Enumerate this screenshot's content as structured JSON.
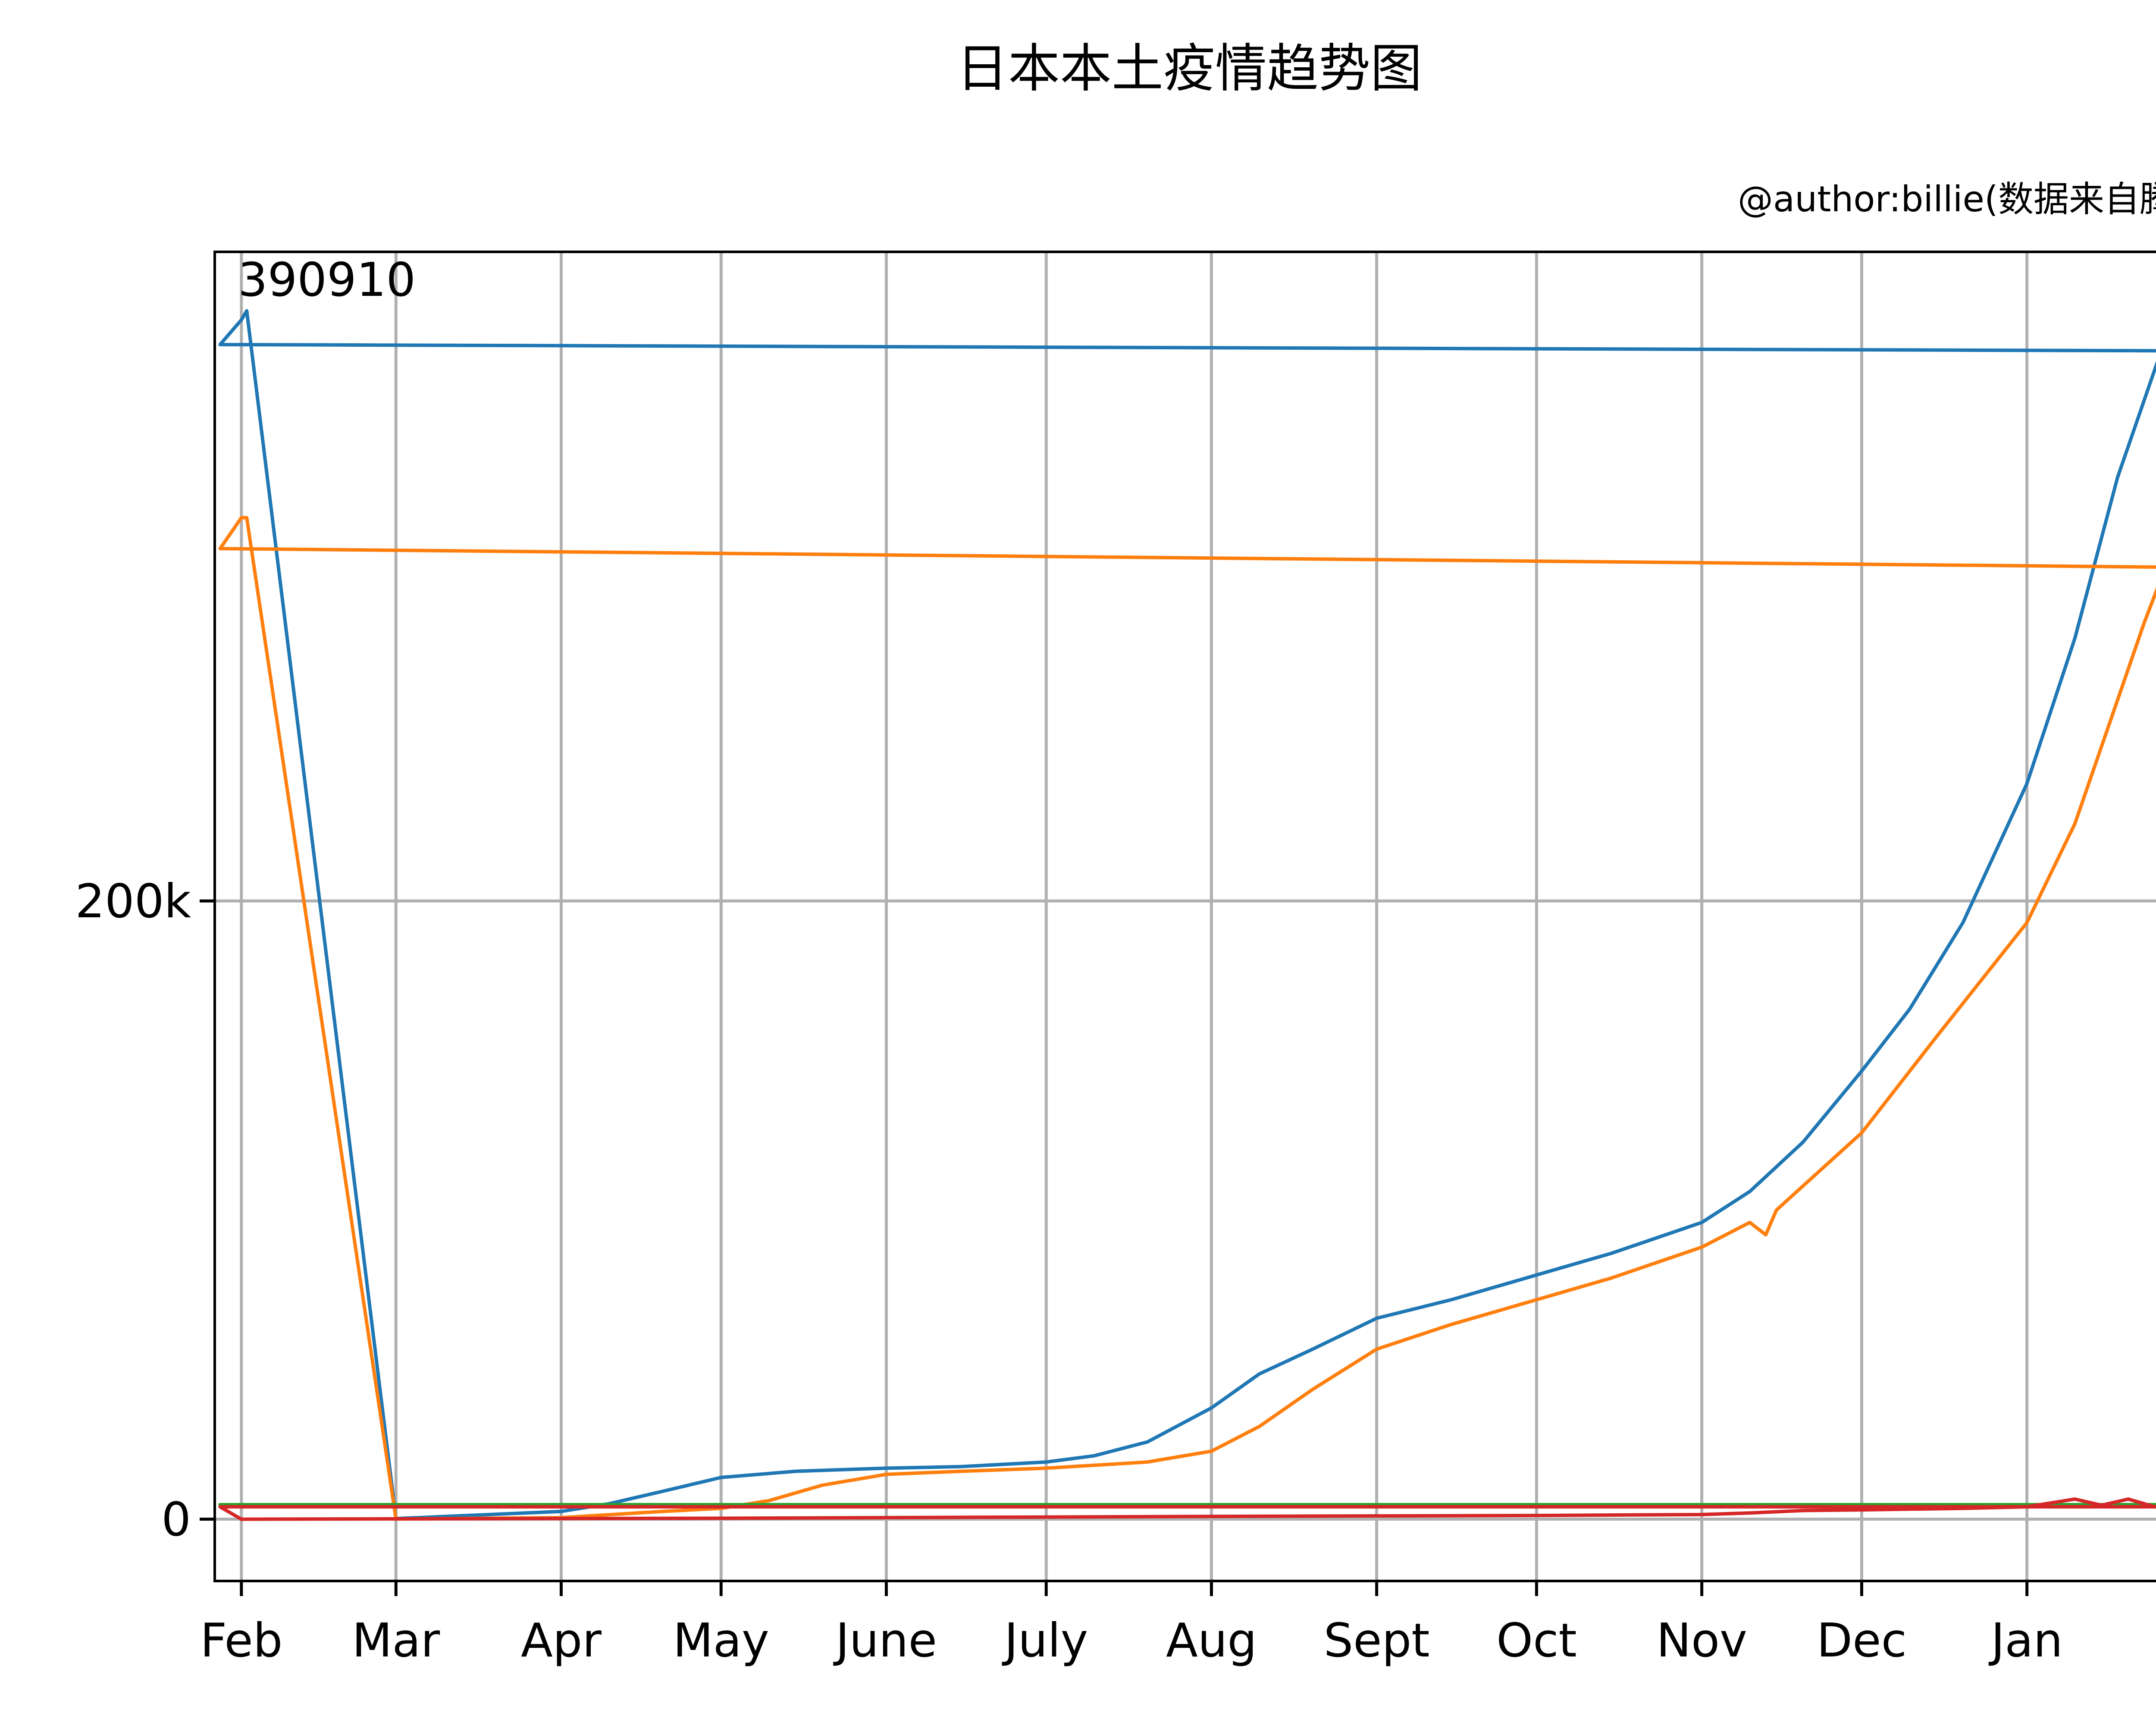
{
  "title": "日本本土疫情趋势图",
  "subtitle": "@author:billie(数据来自腾讯)",
  "chart_data": {
    "type": "line",
    "title": "日本本土疫情趋势图",
    "subtitle": "@author:billie(数据来自腾讯)",
    "xlabel": "",
    "ylabel": "",
    "x_ticks": [
      "Feb",
      "Mar",
      "Apr",
      "May",
      "June",
      "July",
      "Aug",
      "Sept",
      "Oct",
      "Nov",
      "Dec",
      "Jan"
    ],
    "x_tick_dates": [
      "2020-02-01",
      "2020-03-01",
      "2020-04-01",
      "2020-05-01",
      "2020-06-01",
      "2020-07-01",
      "2020-08-01",
      "2020-09-01",
      "2020-10-01",
      "2020-11-01",
      "2020-12-01",
      "2021-01-01"
    ],
    "xlim": [
      "2020-01-27",
      "2021-02-07"
    ],
    "y_ticks": [
      0,
      200000
    ],
    "y_tick_labels": [
      "0",
      "200k"
    ],
    "ylim": [
      -20000,
      410000
    ],
    "grid": true,
    "legend": "none",
    "annotations": [
      {
        "text": "390910"
      }
    ],
    "series": [
      {
        "color": "#1f77b4",
        "points": [
          [
            "2020-01-28",
            380000
          ],
          [
            "2020-02-01",
            388000
          ],
          [
            "2020-02-02",
            390910
          ],
          [
            "2020-03-01",
            200
          ],
          [
            "2020-04-01",
            2500
          ],
          [
            "2020-04-10",
            5000
          ],
          [
            "2020-04-20",
            9000
          ],
          [
            "2020-05-01",
            13500
          ],
          [
            "2020-05-15",
            15500
          ],
          [
            "2020-06-01",
            16500
          ],
          [
            "2020-06-15",
            17000
          ],
          [
            "2020-07-01",
            18500
          ],
          [
            "2020-07-10",
            20500
          ],
          [
            "2020-07-20",
            25000
          ],
          [
            "2020-08-01",
            36000
          ],
          [
            "2020-08-10",
            47000
          ],
          [
            "2020-08-20",
            55000
          ],
          [
            "2020-09-01",
            65000
          ],
          [
            "2020-09-15",
            71000
          ],
          [
            "2020-10-01",
            79000
          ],
          [
            "2020-10-15",
            86000
          ],
          [
            "2020-11-01",
            96000
          ],
          [
            "2020-11-10",
            106000
          ],
          [
            "2020-11-20",
            122000
          ],
          [
            "2020-12-01",
            145000
          ],
          [
            "2020-12-10",
            165000
          ],
          [
            "2020-12-20",
            193000
          ],
          [
            "2021-01-01",
            238000
          ],
          [
            "2021-01-10",
            285000
          ],
          [
            "2021-01-18",
            337000
          ],
          [
            "2021-01-26",
            377000
          ],
          [
            "2021-01-27",
            378000
          ],
          [
            "2020-01-28",
            380000
          ]
        ]
      },
      {
        "color": "#ff7f0e",
        "points": [
          [
            "2020-01-28",
            314000
          ],
          [
            "2020-02-01",
            324000
          ],
          [
            "2020-02-02",
            324000
          ],
          [
            "2020-03-01",
            50
          ],
          [
            "2020-04-01",
            500
          ],
          [
            "2020-04-20",
            2500
          ],
          [
            "2020-05-01",
            3500
          ],
          [
            "2020-05-10",
            6000
          ],
          [
            "2020-05-20",
            11000
          ],
          [
            "2020-06-01",
            14500
          ],
          [
            "2020-06-15",
            15500
          ],
          [
            "2020-07-01",
            16500
          ],
          [
            "2020-07-20",
            18500
          ],
          [
            "2020-08-01",
            22000
          ],
          [
            "2020-08-10",
            30000
          ],
          [
            "2020-08-20",
            42000
          ],
          [
            "2020-09-01",
            55000
          ],
          [
            "2020-09-15",
            63000
          ],
          [
            "2020-10-01",
            71000
          ],
          [
            "2020-10-15",
            78000
          ],
          [
            "2020-11-01",
            88000
          ],
          [
            "2020-11-10",
            96000
          ],
          [
            "2020-11-13",
            92000
          ],
          [
            "2020-11-15",
            100000
          ],
          [
            "2020-12-01",
            125000
          ],
          [
            "2020-12-15",
            156000
          ],
          [
            "2021-01-01",
            193000
          ],
          [
            "2021-01-10",
            225000
          ],
          [
            "2021-01-18",
            265000
          ],
          [
            "2021-01-23",
            290000
          ],
          [
            "2021-01-27",
            308000
          ],
          [
            "2020-01-28",
            314000
          ]
        ]
      },
      {
        "color": "#2ca02c",
        "points": [
          [
            "2020-01-28",
            4700
          ],
          [
            "2021-01-27",
            4700
          ]
        ]
      },
      {
        "color": "#d62728",
        "points": [
          [
            "2020-01-28",
            4000
          ],
          [
            "2020-02-01",
            0
          ],
          [
            "2020-05-01",
            300
          ],
          [
            "2020-08-01",
            900
          ],
          [
            "2020-10-01",
            1200
          ],
          [
            "2020-11-01",
            1500
          ],
          [
            "2020-11-10",
            2000
          ],
          [
            "2020-11-20",
            2800
          ],
          [
            "2020-12-01",
            3000
          ],
          [
            "2020-12-20",
            3500
          ],
          [
            "2021-01-01",
            4000
          ],
          [
            "2021-01-10",
            6500
          ],
          [
            "2021-01-15",
            4500
          ],
          [
            "2021-01-20",
            6500
          ],
          [
            "2021-01-25",
            4000
          ],
          [
            "2021-01-27",
            4000
          ],
          [
            "2020-01-28",
            4000
          ]
        ]
      }
    ]
  }
}
